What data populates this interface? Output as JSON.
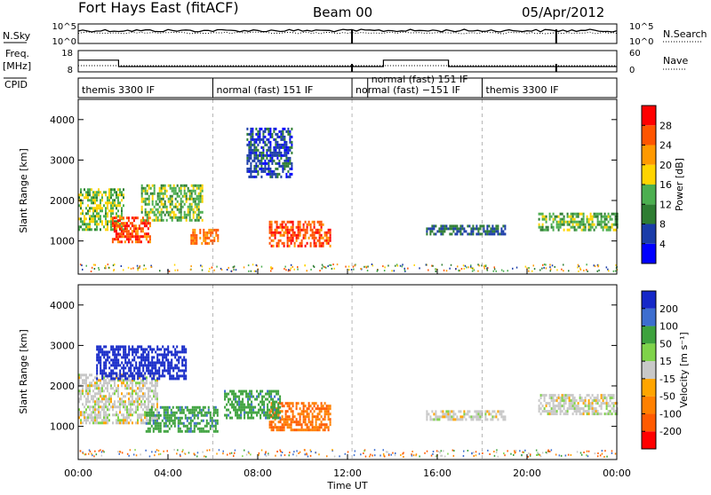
{
  "header": {
    "station": "Fort Hays East (fitACF)",
    "beam": "Beam 00",
    "date": "05/Apr/2012"
  },
  "left_labels": {
    "nsky": "N.Sky",
    "freq_line1": "Freq.",
    "freq_line2": "[MHz]",
    "cpid": "CPID"
  },
  "right_labels": {
    "nsearch": "N.Search",
    "nave": "Nave"
  },
  "cpid_segments": [
    {
      "label": "themis 3300 IF",
      "start": 0,
      "end": 6
    },
    {
      "label": "normal (fast) 151 IF",
      "start": 6,
      "end": 12.2
    },
    {
      "label": "normal (fast) −151 IF",
      "start": 12.2,
      "end": 18
    },
    {
      "label": "normal (fast) 151 IF",
      "start": 12.9,
      "end": 18
    },
    {
      "label": "themis 3300 IF",
      "start": 18,
      "end": 24
    }
  ],
  "colors": {
    "power_scale": [
      "#0000ff",
      "#1a3ca8",
      "#2e7d32",
      "#4caf50",
      "#ffd400",
      "#ff9900",
      "#ff5500",
      "#ff0000"
    ],
    "velocity_scale": [
      "#1528c8",
      "#3d6ecf",
      "#3ea23e",
      "#7fd34a",
      "#c8c8c8",
      "#ffa500",
      "#ff8000",
      "#ff5a00",
      "#ff0000"
    ]
  },
  "chart_data": [
    {
      "type": "line",
      "name": "noise-panel",
      "left_axis": {
        "label": "N.Sky",
        "ticks": [
          "10^5",
          "10^0"
        ]
      },
      "right_axis": {
        "label": "N.Search",
        "ticks": [
          "10^5",
          "10^0"
        ]
      },
      "x_range_hours": [
        0,
        24
      ]
    },
    {
      "type": "line",
      "name": "freq-nave-panel",
      "left_axis": {
        "label": "Freq. [MHz]",
        "ticks": [
          18,
          8
        ]
      },
      "right_axis": {
        "label": "Nave",
        "ticks": [
          60,
          0
        ]
      },
      "freq_steps": [
        {
          "from": 0.0,
          "to": 1.8,
          "value": 13.5
        },
        {
          "from": 1.8,
          "to": 13.6,
          "value": 10.5
        },
        {
          "from": 13.6,
          "to": 16.5,
          "value": 13.5
        },
        {
          "from": 16.5,
          "to": 24.0,
          "value": 10.5
        }
      ],
      "x_range_hours": [
        0,
        24
      ]
    },
    {
      "type": "heatmap",
      "name": "power",
      "ylabel": "Slant Range [km]",
      "yticks": [
        1000,
        2000,
        3000,
        4000
      ],
      "ylim": [
        180,
        4500
      ],
      "xlim": [
        0,
        24
      ],
      "colorbar": {
        "label": "Power [dB]",
        "ticks": [
          4,
          8,
          12,
          16,
          20,
          24,
          28
        ],
        "range": [
          0,
          32
        ]
      },
      "approx_echo_regions": [
        {
          "t_start": 0.0,
          "t_end": 2.0,
          "r_low": 1300,
          "r_high": 2300,
          "value": 15
        },
        {
          "t_start": 1.5,
          "t_end": 3.2,
          "r_low": 1000,
          "r_high": 1600,
          "value": 27
        },
        {
          "t_start": 2.8,
          "t_end": 5.5,
          "r_low": 1500,
          "r_high": 2400,
          "value": 14
        },
        {
          "t_start": 5.0,
          "t_end": 6.2,
          "r_low": 950,
          "r_high": 1300,
          "value": 24
        },
        {
          "t_start": 8.5,
          "t_end": 11.2,
          "r_low": 900,
          "r_high": 1500,
          "value": 26
        },
        {
          "t_start": 7.5,
          "t_end": 9.5,
          "r_low": 2600,
          "r_high": 3800,
          "value": 6
        },
        {
          "t_start": 15.5,
          "t_end": 19.0,
          "r_low": 1200,
          "r_high": 1400,
          "value": 8
        },
        {
          "t_start": 20.5,
          "t_end": 24.0,
          "r_low": 1300,
          "r_high": 1700,
          "value": 14
        }
      ]
    },
    {
      "type": "heatmap",
      "name": "velocity",
      "ylabel": "Slant Range [km]",
      "yticks": [
        1000,
        2000,
        3000,
        4000
      ],
      "ylim": [
        180,
        4500
      ],
      "xlim": [
        0,
        24
      ],
      "xlabel": "Time UT",
      "xticks": [
        "00:00",
        "04:00",
        "08:00",
        "12:00",
        "16:00",
        "20:00",
        "00:00"
      ],
      "colorbar": {
        "label": "Velocity [m s⁻¹]",
        "ticks": [
          200,
          100,
          50,
          15,
          -15,
          -50,
          -100,
          -200
        ],
        "range": [
          -250,
          250
        ]
      },
      "approx_echo_regions": [
        {
          "t_start": 0.0,
          "t_end": 3.5,
          "r_low": 1100,
          "r_high": 2300,
          "value": 0
        },
        {
          "t_start": 0.8,
          "t_end": 4.8,
          "r_low": 2200,
          "r_high": 3000,
          "value": 180
        },
        {
          "t_start": 3.0,
          "t_end": 6.2,
          "r_low": 900,
          "r_high": 1500,
          "value": 60
        },
        {
          "t_start": 8.5,
          "t_end": 11.2,
          "r_low": 900,
          "r_high": 1600,
          "value": -70
        },
        {
          "t_start": 6.5,
          "t_end": 9.0,
          "r_low": 1200,
          "r_high": 1900,
          "value": 60
        },
        {
          "t_start": 15.5,
          "t_end": 19.0,
          "r_low": 1200,
          "r_high": 1400,
          "value": 0
        },
        {
          "t_start": 20.5,
          "t_end": 24.0,
          "r_low": 1300,
          "r_high": 1800,
          "value": 0
        }
      ]
    }
  ]
}
